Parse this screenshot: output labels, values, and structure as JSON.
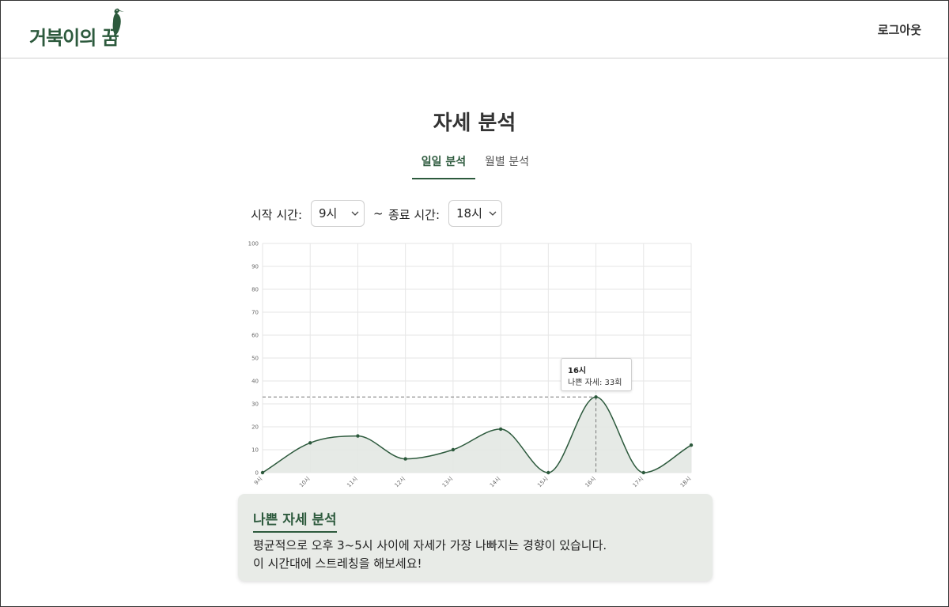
{
  "header": {
    "logo_text": "거북이의 꿈",
    "logout_label": "로그아웃"
  },
  "page": {
    "title": "자세 분석"
  },
  "tabs": [
    {
      "label": "일일 분석",
      "active": true
    },
    {
      "label": "월별 분석",
      "active": false
    }
  ],
  "filters": {
    "start_label": "시작 시간:",
    "start_value": "9시",
    "separator": "~",
    "end_label": "종료 시간:",
    "end_value": "18시"
  },
  "chart_data": {
    "type": "area",
    "categories": [
      "9시",
      "10시",
      "11시",
      "12시",
      "13시",
      "14시",
      "15시",
      "16시",
      "17시",
      "18시"
    ],
    "series": [
      {
        "values": [
          0,
          13,
          16,
          6,
          10,
          19,
          0,
          33,
          0,
          12
        ]
      }
    ],
    "ylim": [
      0,
      100
    ],
    "yticks": [
      0,
      10,
      20,
      30,
      40,
      50,
      60,
      70,
      80,
      90,
      100
    ],
    "grid": true,
    "highlight": {
      "index": 7,
      "value": 33
    }
  },
  "tooltip": {
    "title": "16시",
    "value": "나쁜 자세: 33회"
  },
  "analysis": {
    "title": "나쁜 자세 분석",
    "lines": [
      "평균적으로 오후 3~5시 사이에 자세가 가장 나빠지는 경향이 있습니다.",
      "이 시간대에 스트레칭을 해보세요!"
    ]
  },
  "colors": {
    "accent": "#2d5a3d",
    "line": "#2d5a3d",
    "fill": "#e3e8e3",
    "panel": "#e8ebe7"
  }
}
